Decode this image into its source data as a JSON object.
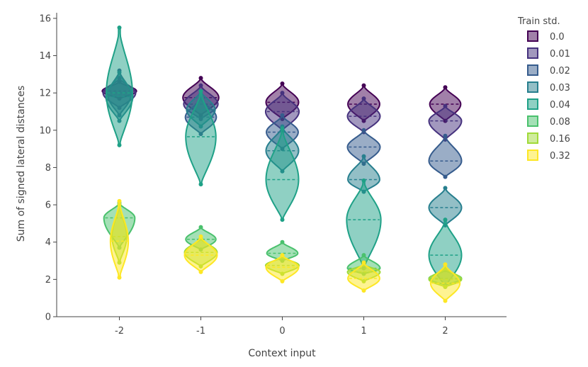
{
  "chart_data": {
    "type": "violin",
    "xlabel": "Context input",
    "ylabel": "Sum of signed lateral distances",
    "x_categories": [
      "-2",
      "-1",
      "0",
      "1",
      "2"
    ],
    "ylim": [
      0,
      16.3
    ],
    "y_ticks": [
      0,
      2,
      4,
      6,
      8,
      10,
      12,
      14,
      16
    ],
    "grid": false,
    "legend": {
      "title": "Train std.",
      "position": "right"
    },
    "series": [
      {
        "name": "0.0",
        "color": "#440154",
        "violins": [
          {
            "x": "-2",
            "min": 11.7,
            "max": 12.6,
            "mean": 12.1,
            "width": 0.42
          },
          {
            "x": "-1",
            "min": 10.8,
            "max": 12.8,
            "mean": 11.75,
            "width": 0.44
          },
          {
            "x": "0",
            "min": 10.6,
            "max": 12.5,
            "mean": 11.5,
            "width": 0.4
          },
          {
            "x": "1",
            "min": 10.5,
            "max": 12.4,
            "mean": 11.4,
            "width": 0.39
          },
          {
            "x": "2",
            "min": 10.5,
            "max": 12.3,
            "mean": 11.4,
            "width": 0.38
          }
        ]
      },
      {
        "name": "0.01",
        "color": "#46327e",
        "violins": [
          {
            "x": "-2",
            "min": 11.2,
            "max": 12.8,
            "mean": 12.0,
            "width": 0.4
          },
          {
            "x": "-1",
            "min": 10.6,
            "max": 12.4,
            "mean": 11.4,
            "width": 0.42
          },
          {
            "x": "0",
            "min": 10.0,
            "max": 12.0,
            "mean": 11.0,
            "width": 0.41
          },
          {
            "x": "1",
            "min": 9.9,
            "max": 11.7,
            "mean": 10.75,
            "width": 0.4
          },
          {
            "x": "2",
            "min": 9.5,
            "max": 11.3,
            "mean": 10.5,
            "width": 0.4
          }
        ]
      },
      {
        "name": "0.02",
        "color": "#365c8d",
        "violins": [
          {
            "x": "-2",
            "min": 10.8,
            "max": 13.2,
            "mean": 11.9,
            "width": 0.28
          },
          {
            "x": "-1",
            "min": 9.8,
            "max": 11.7,
            "mean": 10.7,
            "width": 0.38
          },
          {
            "x": "0",
            "min": 9.0,
            "max": 10.8,
            "mean": 9.9,
            "width": 0.39
          },
          {
            "x": "1",
            "min": 8.2,
            "max": 10.0,
            "mean": 9.1,
            "width": 0.4
          },
          {
            "x": "2",
            "min": 7.5,
            "max": 9.7,
            "mean": 8.35,
            "width": 0.4
          }
        ]
      },
      {
        "name": "0.03",
        "color": "#277f8e",
        "violins": [
          {
            "x": "-2",
            "min": 10.5,
            "max": 13.1,
            "mean": 11.8,
            "width": 0.33
          },
          {
            "x": "-1",
            "min": 10.2,
            "max": 12.1,
            "mean": 11.1,
            "width": 0.35
          },
          {
            "x": "0",
            "min": 7.8,
            "max": 10.2,
            "mean": 8.9,
            "width": 0.4
          },
          {
            "x": "1",
            "min": 6.7,
            "max": 8.6,
            "mean": 7.35,
            "width": 0.39
          },
          {
            "x": "2",
            "min": 4.9,
            "max": 6.9,
            "mean": 5.85,
            "width": 0.4
          }
        ]
      },
      {
        "name": "0.04",
        "color": "#1fa187",
        "violins": [
          {
            "x": "-2",
            "min": 9.2,
            "max": 15.5,
            "mean": 12.0,
            "width": 0.32
          },
          {
            "x": "-1",
            "min": 7.1,
            "max": 12.1,
            "mean": 9.65,
            "width": 0.37
          },
          {
            "x": "0",
            "min": 5.2,
            "max": 10.1,
            "mean": 7.35,
            "width": 0.4
          },
          {
            "x": "1",
            "min": 2.6,
            "max": 7.3,
            "mean": 5.2,
            "width": 0.42
          },
          {
            "x": "2",
            "min": 1.6,
            "max": 5.2,
            "mean": 3.3,
            "width": 0.4
          }
        ]
      },
      {
        "name": "0.08",
        "color": "#4ac16d",
        "violins": [
          {
            "x": "-2",
            "min": 3.7,
            "max": 6.1,
            "mean": 5.3,
            "width": 0.38
          },
          {
            "x": "-1",
            "min": 3.6,
            "max": 4.8,
            "mean": 4.15,
            "width": 0.37
          },
          {
            "x": "0",
            "min": 3.0,
            "max": 4.0,
            "mean": 3.4,
            "width": 0.38
          },
          {
            "x": "1",
            "min": 2.3,
            "max": 3.3,
            "mean": 2.6,
            "width": 0.4
          },
          {
            "x": "2",
            "min": 1.7,
            "max": 2.5,
            "mean": 2.05,
            "width": 0.4
          }
        ]
      },
      {
        "name": "0.16",
        "color": "#a0da39",
        "violins": [
          {
            "x": "-2",
            "min": 2.9,
            "max": 6.0,
            "mean": 4.3,
            "width": 0.18
          },
          {
            "x": "-1",
            "min": 2.7,
            "max": 4.2,
            "mean": 3.45,
            "width": 0.4
          },
          {
            "x": "0",
            "min": 2.3,
            "max": 3.2,
            "mean": 2.75,
            "width": 0.41
          },
          {
            "x": "1",
            "min": 1.9,
            "max": 2.8,
            "mean": 2.4,
            "width": 0.4
          },
          {
            "x": "2",
            "min": 1.6,
            "max": 2.6,
            "mean": 2.0,
            "width": 0.4
          }
        ]
      },
      {
        "name": "0.32",
        "color": "#fde725",
        "violins": [
          {
            "x": "-2",
            "min": 2.1,
            "max": 6.2,
            "mean": 4.05,
            "width": 0.22
          },
          {
            "x": "-1",
            "min": 2.4,
            "max": 4.3,
            "mean": 3.3,
            "width": 0.4
          },
          {
            "x": "0",
            "min": 1.9,
            "max": 3.3,
            "mean": 2.65,
            "width": 0.4
          },
          {
            "x": "1",
            "min": 1.4,
            "max": 2.9,
            "mean": 2.05,
            "width": 0.39
          },
          {
            "x": "2",
            "min": 0.85,
            "max": 2.8,
            "mean": 1.8,
            "width": 0.36
          }
        ]
      }
    ]
  }
}
